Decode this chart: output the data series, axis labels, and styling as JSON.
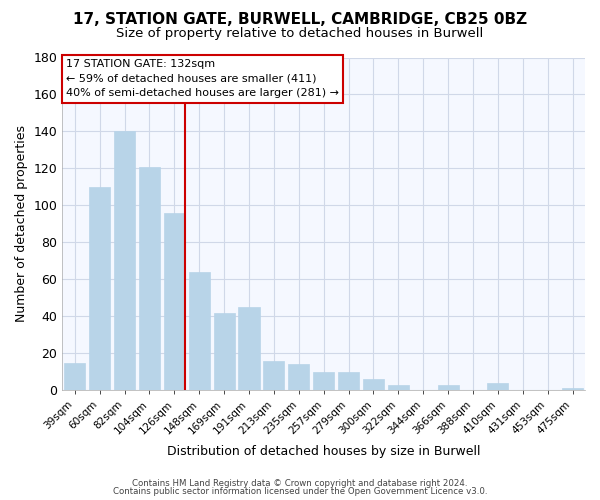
{
  "title1": "17, STATION GATE, BURWELL, CAMBRIDGE, CB25 0BZ",
  "title2": "Size of property relative to detached houses in Burwell",
  "xlabel": "Distribution of detached houses by size in Burwell",
  "ylabel": "Number of detached properties",
  "categories": [
    "39sqm",
    "60sqm",
    "82sqm",
    "104sqm",
    "126sqm",
    "148sqm",
    "169sqm",
    "191sqm",
    "213sqm",
    "235sqm",
    "257sqm",
    "279sqm",
    "300sqm",
    "322sqm",
    "344sqm",
    "366sqm",
    "388sqm",
    "410sqm",
    "431sqm",
    "453sqm",
    "475sqm"
  ],
  "values": [
    15,
    110,
    140,
    121,
    96,
    64,
    42,
    45,
    16,
    14,
    10,
    10,
    6,
    3,
    0,
    3,
    0,
    4,
    0,
    0,
    1
  ],
  "bar_color": "#b8d4e8",
  "red_line_index": 4,
  "ylim": [
    0,
    180
  ],
  "yticks": [
    0,
    20,
    40,
    60,
    80,
    100,
    120,
    140,
    160,
    180
  ],
  "annotation_title": "17 STATION GATE: 132sqm",
  "annotation_line1": "← 59% of detached houses are smaller (411)",
  "annotation_line2": "40% of semi-detached houses are larger (281) →",
  "annotation_box_facecolor": "#ffffff",
  "annotation_box_edgecolor": "#cc0000",
  "footer1": "Contains HM Land Registry data © Crown copyright and database right 2024.",
  "footer2": "Contains public sector information licensed under the Open Government Licence v3.0.",
  "background_color": "#ffffff",
  "plot_background": "#f5f8ff",
  "grid_color": "#d0d8e8",
  "title1_fontsize": 11,
  "title2_fontsize": 9.5
}
